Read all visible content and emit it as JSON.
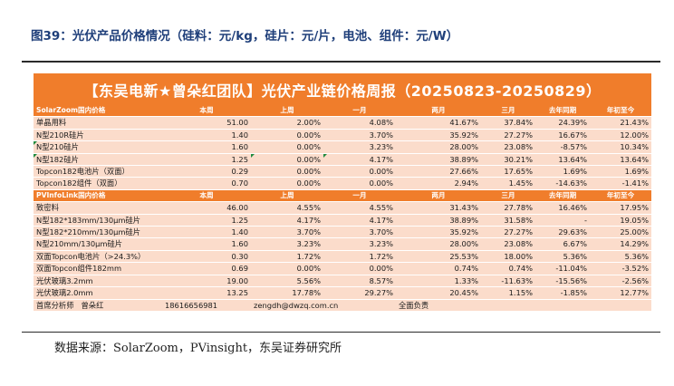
{
  "figure_title": "图39：光伏产品价格情况（硅料：元/kg，硅片：元/片，电池、组件：元/W）",
  "banner_title": "【东吴电新★曾朵红团队】光伏产业链价格周报（20250823-20250829）",
  "sections": [
    {
      "headers": [
        "SolarZoom国内价格",
        "本周",
        "上周",
        "一月",
        "两月",
        "三月",
        "去年同期",
        "年初至今"
      ],
      "rows": [
        [
          "单晶用料",
          "51.00",
          "2.00%",
          "4.08%",
          "41.67%",
          "37.84%",
          "24.39%",
          "21.43%"
        ],
        [
          "N型210R硅片",
          "1.40",
          "0.00%",
          "3.70%",
          "35.92%",
          "27.27%",
          "16.67%",
          "12.00%"
        ],
        [
          "N型210硅片",
          "1.60",
          "0.00%",
          "3.23%",
          "28.00%",
          "23.08%",
          "-8.57%",
          "10.34%"
        ],
        [
          "N型182硅片",
          "1.25",
          "0.00%",
          "4.17%",
          "38.89%",
          "30.21%",
          "13.64%",
          "13.64%"
        ],
        [
          "Topcon182电池片（双面）",
          "0.29",
          "0.00%",
          "0.00%",
          "27.66%",
          "17.65%",
          "1.69%",
          "1.69%"
        ],
        [
          "Topcon182组件（双面）",
          "0.70",
          "0.00%",
          "0.00%",
          "2.94%",
          "1.45%",
          "-14.63%",
          "-1.41%"
        ]
      ]
    },
    {
      "headers": [
        "PVInfoLink国内价格",
        "本周",
        "上周",
        "一月",
        "两月",
        "三月",
        "去年同期",
        "年初至今"
      ],
      "rows": [
        [
          "致密料",
          "46.00",
          "4.55%",
          "4.55%",
          "31.43%",
          "27.78%",
          "16.46%",
          "17.95%"
        ],
        [
          "N型182*183mm/130μm硅片",
          "1.25",
          "4.17%",
          "4.17%",
          "38.89%",
          "31.58%",
          "-",
          "19.05%"
        ],
        [
          "N型182*210mm/130μm硅片",
          "1.40",
          "3.70%",
          "3.70%",
          "35.92%",
          "27.27%",
          "29.63%",
          "25.00%"
        ],
        [
          "N型210mm/130μm硅片",
          "1.60",
          "3.23%",
          "3.23%",
          "28.00%",
          "23.08%",
          "6.67%",
          "14.29%"
        ],
        [
          "双面Topcon电池片（>24.3%）",
          "0.30",
          "1.72%",
          "1.72%",
          "25.53%",
          "18.00%",
          "5.36%",
          "5.36%"
        ],
        [
          "双面Topcon组件182mm",
          "0.69",
          "0.00%",
          "0.00%",
          "0.74%",
          "0.74%",
          "-11.04%",
          "-3.52%"
        ],
        [
          "光伏玻璃3.2mm",
          "19.00",
          "5.56%",
          "8.57%",
          "1.33%",
          "-11.63%",
          "-15.56%",
          "-2.56%"
        ],
        [
          "光伏玻璃2.0mm",
          "13.25",
          "17.78%",
          "29.27%",
          "20.45%",
          "1.15%",
          "-1.85%",
          "12.77%"
        ]
      ]
    }
  ],
  "footer": {
    "role": "首席分析师",
    "name": "曾朵红",
    "phone": "18616656981",
    "email": "zengdh@dwzq.com.cn",
    "duty": "全面负责"
  },
  "source": "数据来源：SolarZoom，PVinsight，东吴证券研究所",
  "colors": {
    "header_orange": "#f07d2b",
    "row_fill": "#fbdccb",
    "title_blue": "#1f3f7a",
    "marker_green": "#1e8a3c"
  }
}
